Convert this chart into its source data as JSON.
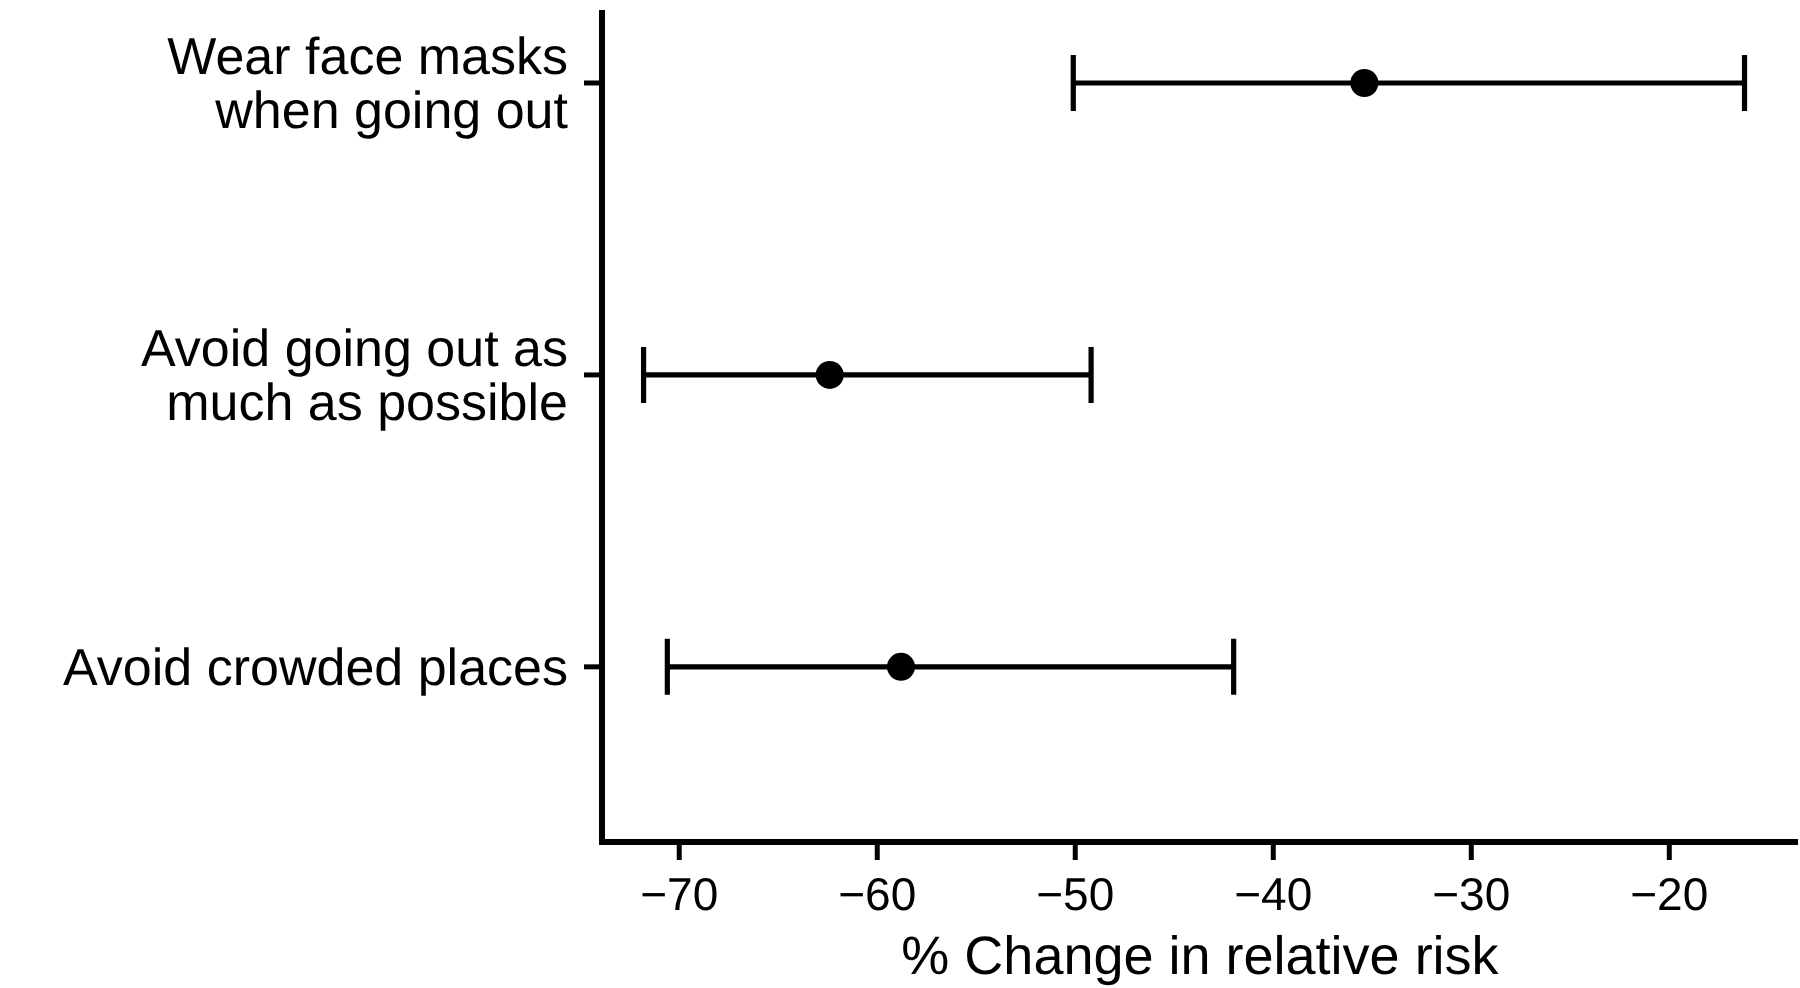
{
  "chart_data": {
    "type": "scatter",
    "orientation": "horizontal",
    "categories": [
      "Wear face masks\nwhen going out",
      "Avoid going out as\nmuch as possible",
      "Avoid crowded places"
    ],
    "values": [
      -35.4,
      -62.4,
      -58.8
    ],
    "errors": [
      [
        -50.1,
        -16.2
      ],
      [
        -71.8,
        -49.2
      ],
      [
        -70.6,
        -42.0
      ]
    ],
    "color": "#000000",
    "marker": "circle",
    "xlim": [
      -73.9,
      -13.5
    ],
    "xticks": [
      -70,
      -60,
      -50,
      -40,
      -30,
      -20
    ],
    "xlabel": "% Change in relative risk"
  }
}
